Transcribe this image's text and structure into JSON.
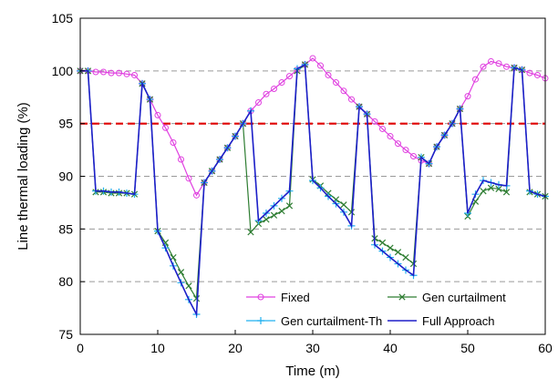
{
  "chart_data": {
    "type": "line",
    "title": "",
    "xlabel": "Time (m)",
    "ylabel": "Line thermal loading (%)",
    "xlim": [
      0,
      60
    ],
    "ylim": [
      75,
      105
    ],
    "xticks": [
      0,
      10,
      20,
      30,
      40,
      50,
      60
    ],
    "yticks": [
      75,
      80,
      85,
      90,
      95,
      100,
      105
    ],
    "grid": "horizontal dashed",
    "legend_position": "bottom",
    "threshold": {
      "y": 95,
      "color": "#e00000",
      "style": "dashed"
    },
    "x": [
      0,
      1,
      2,
      3,
      4,
      5,
      6,
      7,
      8,
      9,
      10,
      11,
      12,
      13,
      14,
      15,
      16,
      17,
      18,
      19,
      20,
      21,
      22,
      23,
      24,
      25,
      26,
      27,
      28,
      29,
      30,
      31,
      32,
      33,
      34,
      35,
      36,
      37,
      38,
      39,
      40,
      41,
      42,
      43,
      44,
      45,
      46,
      47,
      48,
      49,
      50,
      51,
      52,
      53,
      54,
      55,
      56,
      57,
      58,
      59,
      60
    ],
    "series": [
      {
        "name": "Fixed",
        "color": "#e040e0",
        "marker": "circle",
        "values": [
          100,
          100,
          99.9,
          99.9,
          99.8,
          99.8,
          99.7,
          99.6,
          98.8,
          97.3,
          95.8,
          94.6,
          93.2,
          91.6,
          89.8,
          88.2,
          89.4,
          90.5,
          91.6,
          92.7,
          93.8,
          95.0,
          96.2,
          97.0,
          97.8,
          98.3,
          98.9,
          99.5,
          100.1,
          100.6,
          101.2,
          100.5,
          99.6,
          98.9,
          98.1,
          97.3,
          96.6,
          95.9,
          95.2,
          94.5,
          93.8,
          93.1,
          92.5,
          91.9,
          91.5,
          91.2,
          92.8,
          93.9,
          95.0,
          96.4,
          97.6,
          99.2,
          100.4,
          100.9,
          100.7,
          100.4,
          100.3,
          100.1,
          99.8,
          99.6,
          99.3
        ]
      },
      {
        "name": "Gen curtailment",
        "color": "#2e7d32",
        "marker": "x",
        "values": [
          100,
          100,
          88.5,
          88.5,
          88.4,
          88.4,
          88.4,
          88.3,
          98.8,
          97.3,
          84.8,
          83.7,
          82.3,
          80.9,
          79.6,
          78.4,
          89.4,
          90.5,
          91.6,
          92.7,
          93.8,
          95.0,
          84.7,
          85.5,
          85.9,
          86.3,
          86.7,
          87.2,
          100.0,
          100.6,
          89.7,
          89.1,
          88.4,
          87.8,
          87.3,
          86.6,
          96.6,
          95.9,
          84.1,
          83.7,
          83.2,
          82.8,
          82.3,
          81.7,
          91.8,
          91.2,
          92.8,
          93.9,
          95.0,
          96.4,
          86.2,
          87.6,
          88.6,
          88.9,
          88.8,
          88.5,
          100.3,
          100.1,
          88.5,
          88.3,
          88.1
        ]
      },
      {
        "name": "Gen curtailment-Th",
        "color": "#20b0f0",
        "marker": "plus",
        "values": [
          100,
          100,
          88.6,
          88.6,
          88.5,
          88.5,
          88.4,
          88.3,
          98.8,
          97.3,
          84.8,
          83.2,
          81.5,
          79.9,
          78.3,
          76.9,
          89.4,
          90.5,
          91.6,
          92.7,
          93.8,
          95.0,
          96.2,
          85.8,
          86.5,
          87.2,
          87.9,
          88.6,
          100.2,
          100.6,
          89.6,
          88.9,
          88.1,
          87.4,
          86.6,
          85.3,
          96.6,
          95.9,
          83.5,
          82.9,
          82.3,
          81.7,
          81.1,
          80.6,
          91.8,
          91.2,
          92.8,
          93.9,
          95.0,
          96.4,
          86.5,
          88.3,
          89.6,
          89.4,
          89.2,
          89.1,
          100.3,
          100.1,
          88.6,
          88.3,
          88.1
        ]
      },
      {
        "name": "Full Approach",
        "color": "#1f1fc8",
        "marker": "none",
        "values": [
          100,
          100,
          88.6,
          88.6,
          88.5,
          88.5,
          88.4,
          88.3,
          98.8,
          97.3,
          84.8,
          83.2,
          81.5,
          79.9,
          78.3,
          76.9,
          89.4,
          90.5,
          91.6,
          92.7,
          93.8,
          95.0,
          96.2,
          85.8,
          86.5,
          87.2,
          87.9,
          88.6,
          100.2,
          100.6,
          89.6,
          88.9,
          88.1,
          87.4,
          86.6,
          85.3,
          96.6,
          95.9,
          83.5,
          82.9,
          82.3,
          81.7,
          81.1,
          80.6,
          91.8,
          91.2,
          92.8,
          93.9,
          95.0,
          96.4,
          86.5,
          88.3,
          89.6,
          89.4,
          89.2,
          89.1,
          100.3,
          100.1,
          88.6,
          88.3,
          88.1
        ]
      }
    ]
  }
}
